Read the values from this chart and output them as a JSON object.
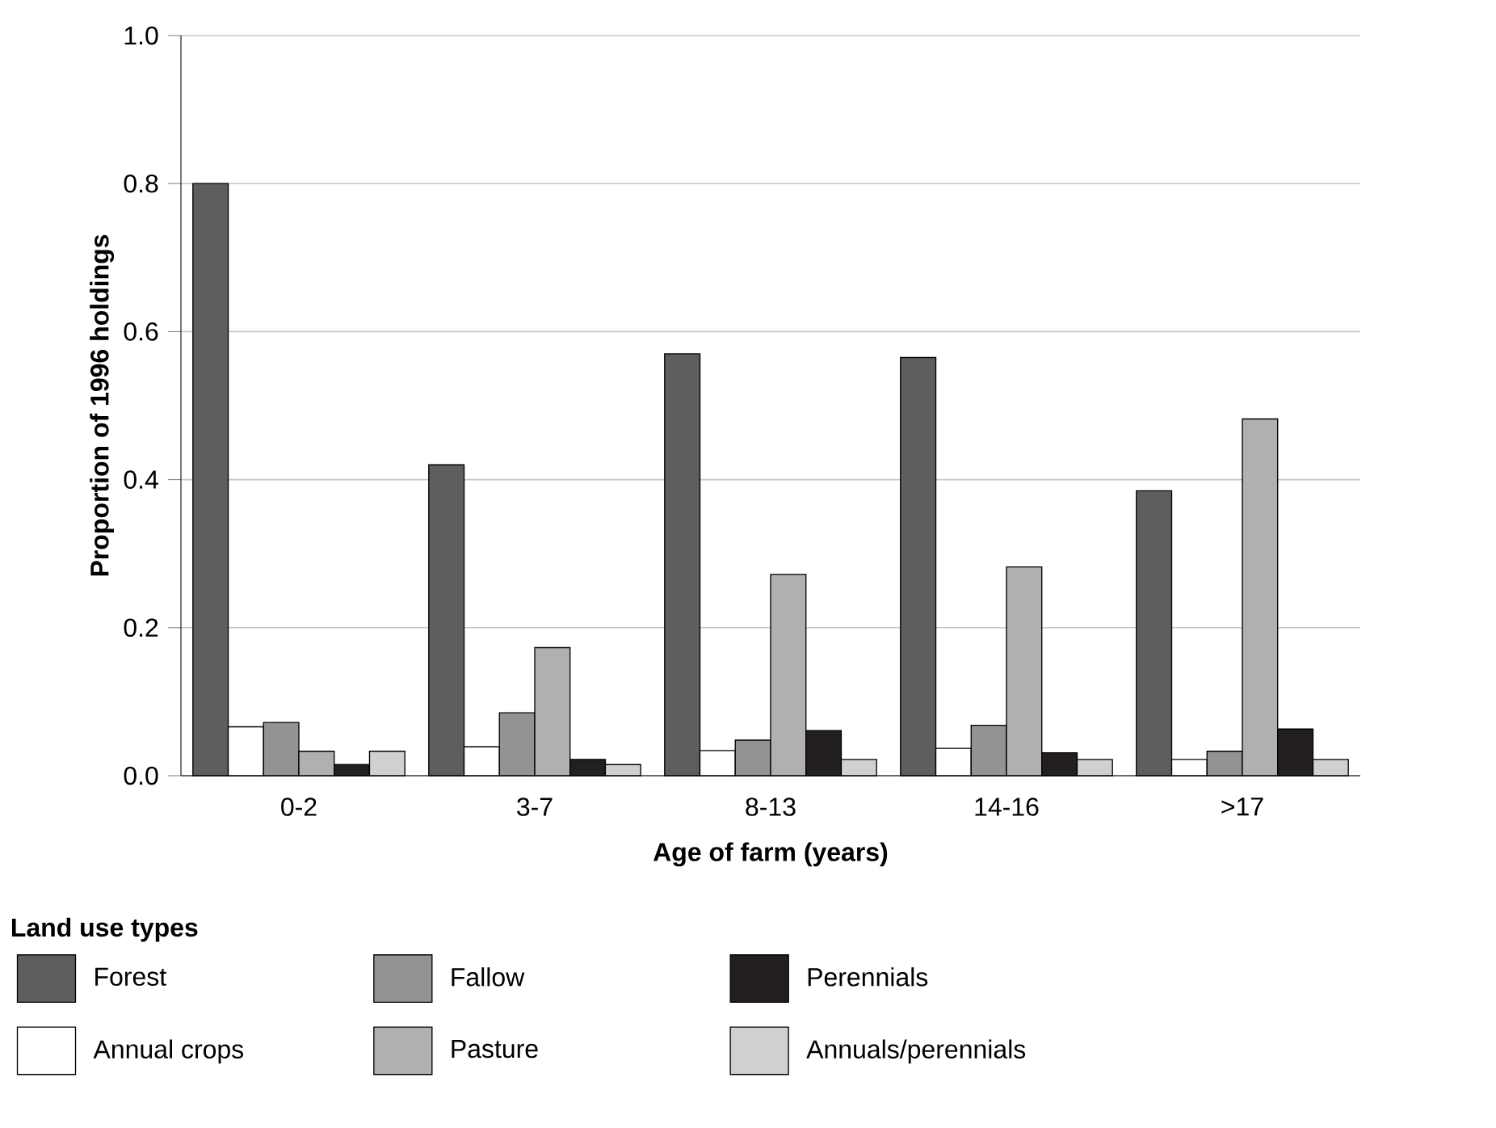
{
  "chart_data": {
    "type": "bar",
    "xlabel": "Age of farm (years)",
    "ylabel": "Proportion of 1996 holdings",
    "legend_title": "Land use types",
    "categories": [
      "0-2",
      "3-7",
      "8-13",
      "14-16",
      ">17"
    ],
    "series": [
      {
        "name": "Forest",
        "color": "#5e5e5e",
        "values": [
          0.8,
          0.42,
          0.57,
          0.565,
          0.385
        ]
      },
      {
        "name": "Annual crops",
        "color": "#ffffff",
        "values": [
          0.066,
          0.039,
          0.034,
          0.037,
          0.022
        ]
      },
      {
        "name": "Fallow",
        "color": "#939393",
        "values": [
          0.072,
          0.085,
          0.048,
          0.068,
          0.033
        ]
      },
      {
        "name": "Pasture",
        "color": "#b0b0b0",
        "values": [
          0.033,
          0.173,
          0.272,
          0.282,
          0.482
        ]
      },
      {
        "name": "Perennials",
        "color": "#231f20",
        "values": [
          0.015,
          0.022,
          0.061,
          0.031,
          0.063
        ]
      },
      {
        "name": "Annuals/perennials",
        "color": "#d0d0d0",
        "values": [
          0.033,
          0.015,
          0.022,
          0.022,
          0.022
        ]
      }
    ],
    "ylim": [
      0,
      1
    ],
    "yticks": [
      {
        "value": 0,
        "label": "0.0"
      },
      {
        "value": 0.2,
        "label": "0.2"
      },
      {
        "value": 0.4,
        "label": "0.4"
      },
      {
        "value": 0.6,
        "label": "0.6"
      },
      {
        "value": 0.8,
        "label": "0.8"
      },
      {
        "value": 1,
        "label": "1.0"
      }
    ],
    "grid": "y",
    "legend": "bottom"
  }
}
